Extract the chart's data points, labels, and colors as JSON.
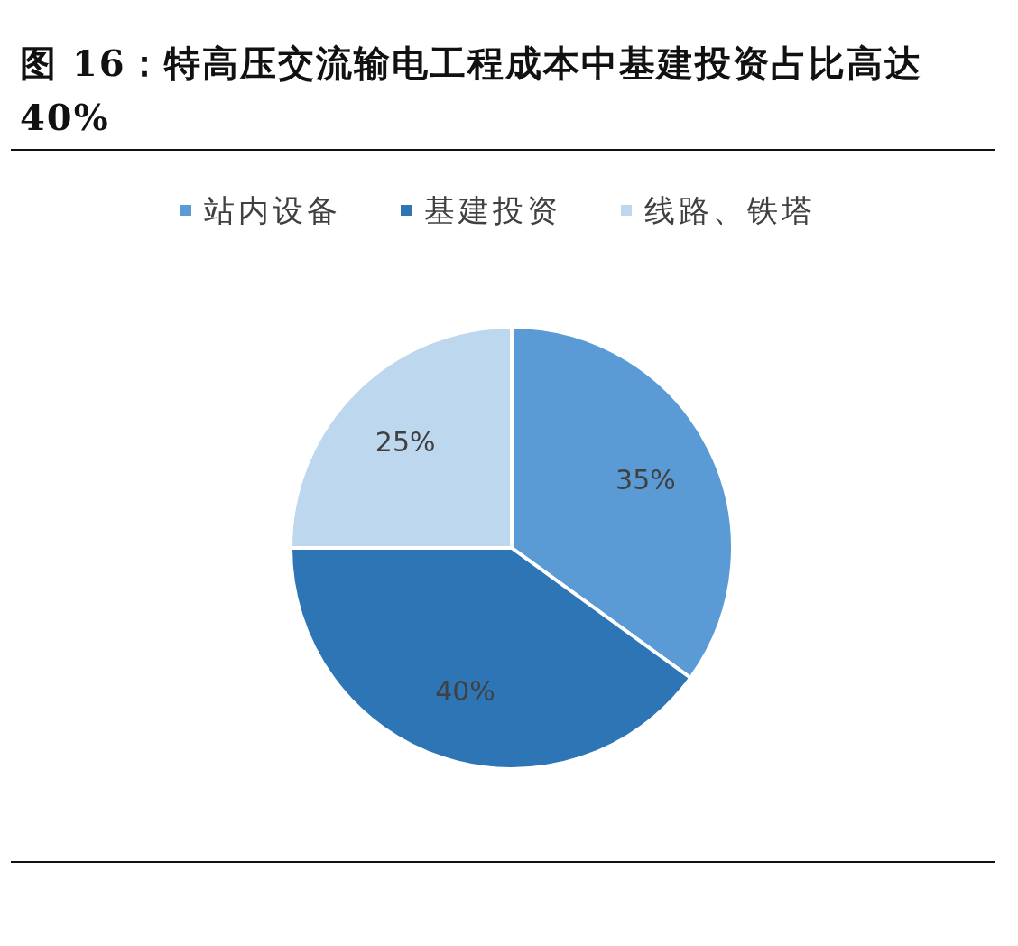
{
  "chart_data": {
    "type": "pie",
    "title": "图 16：特高压交流输电工程成本中基建投资占比高达 40%",
    "categories": [
      "站内设备",
      "基建投资",
      "线路、铁塔"
    ],
    "values": [
      35,
      40,
      25
    ],
    "colors": [
      "#5b9bd5",
      "#2e75b6",
      "#bdd7ee"
    ],
    "value_labels": [
      "35%",
      "40%",
      "25%"
    ],
    "legend": "top"
  }
}
